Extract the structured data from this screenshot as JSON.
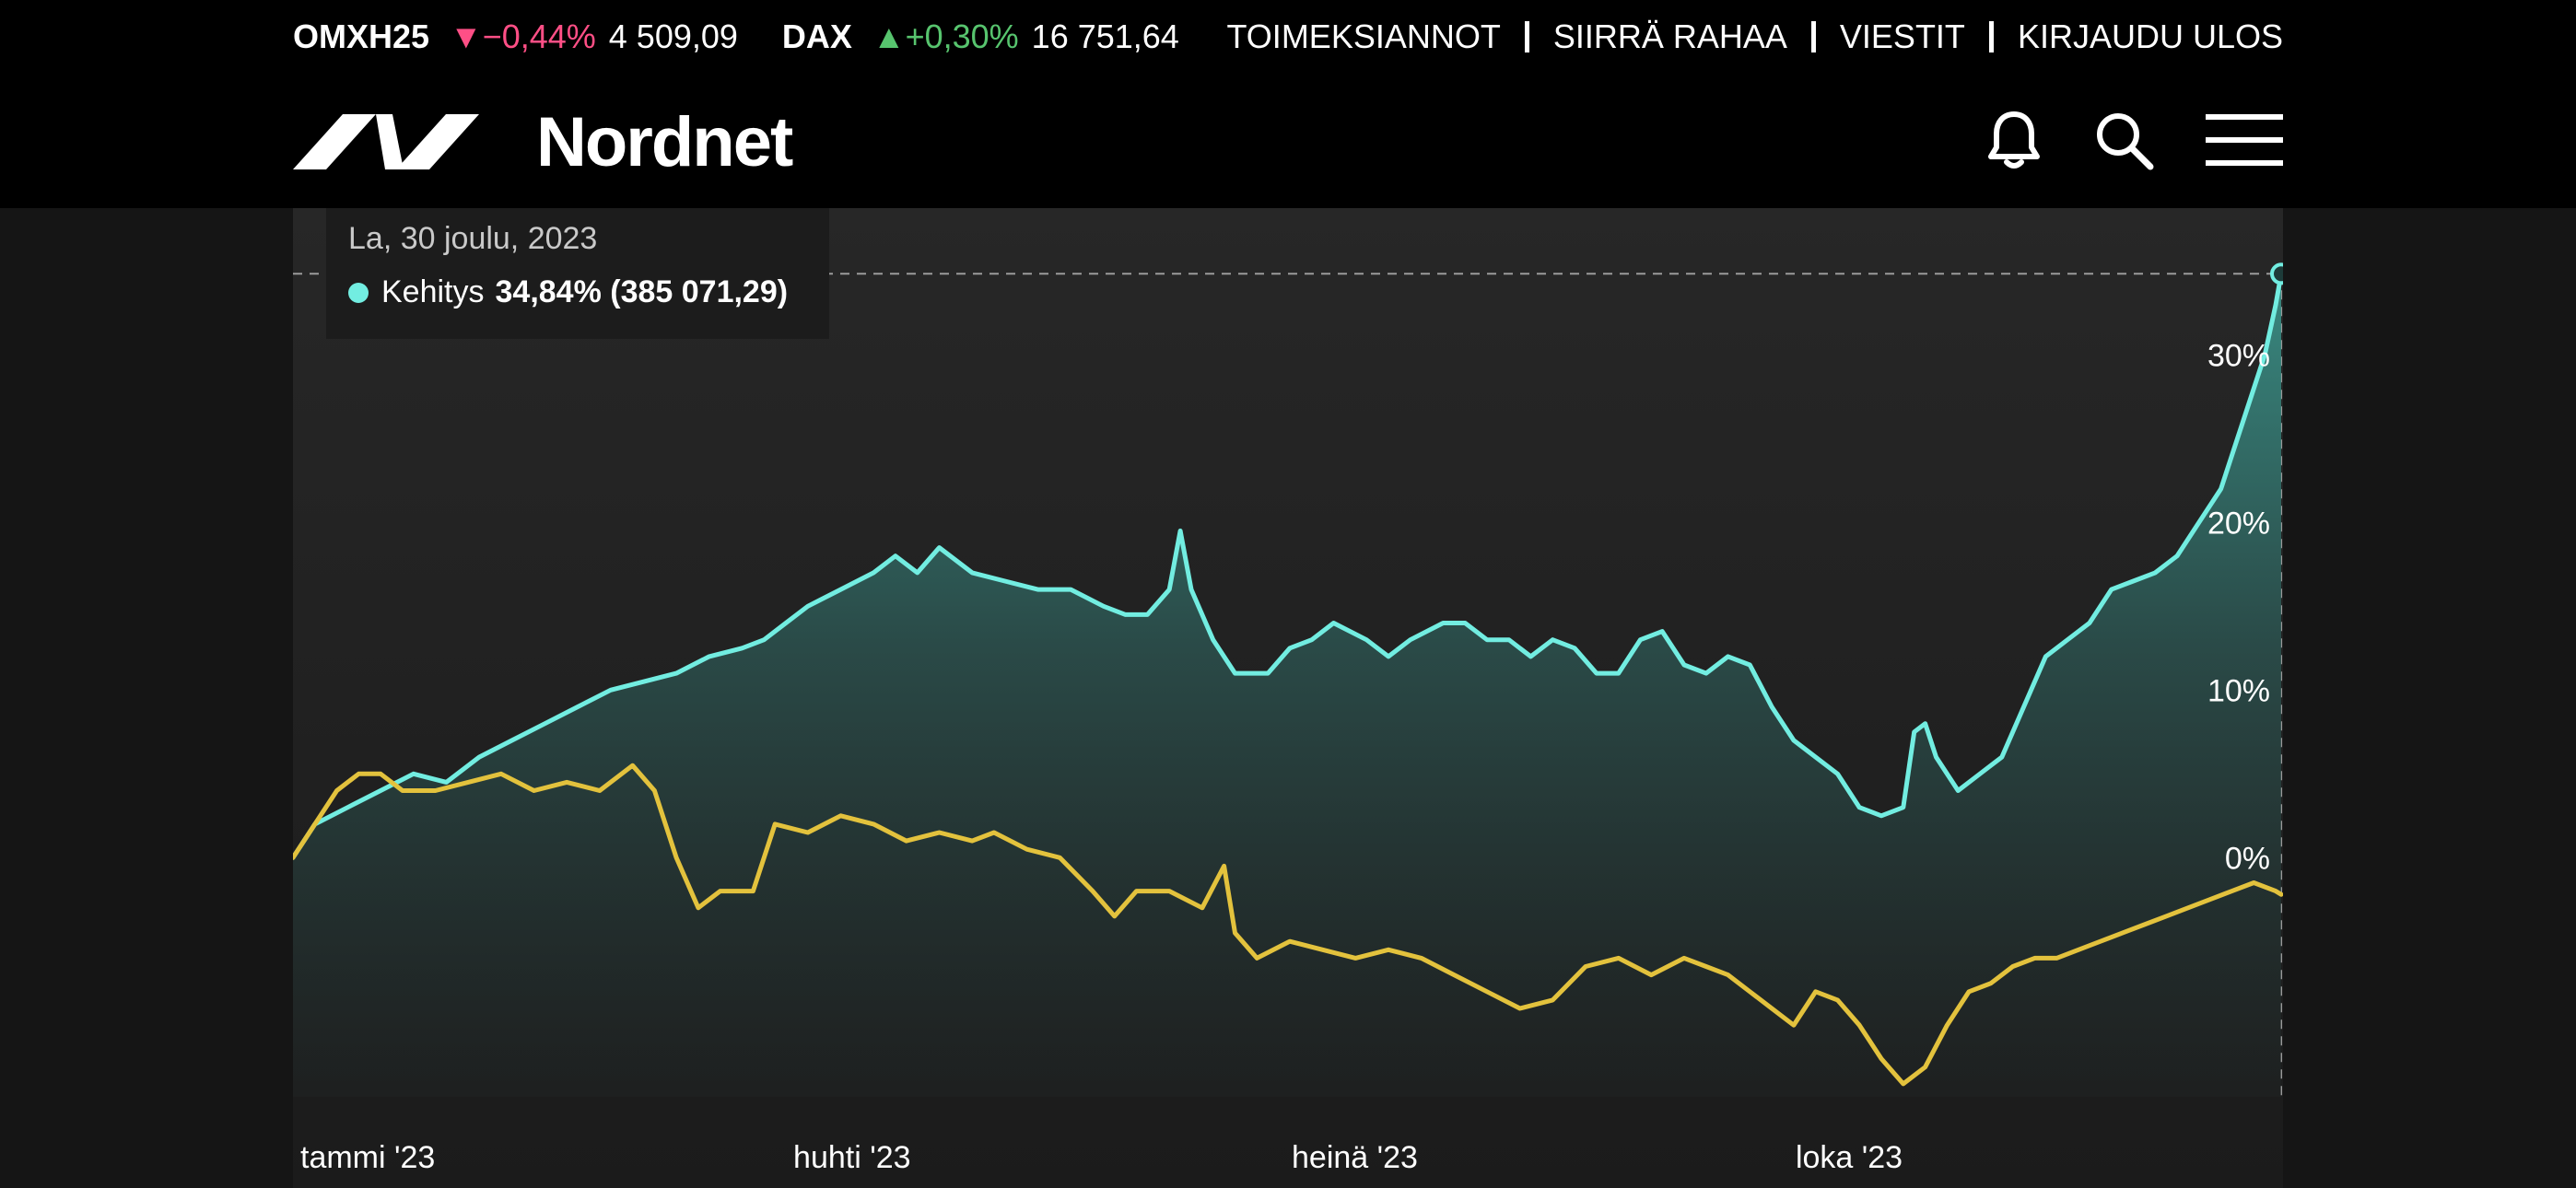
{
  "header": {
    "tickers": [
      {
        "name": "OMXH25",
        "change": "▼−0,44%",
        "direction": "down",
        "value": "4 509,09"
      },
      {
        "name": "DAX",
        "change": "▲+0,30%",
        "direction": "up",
        "value": "16 751,64"
      }
    ],
    "links": [
      "TOIMEKSIANNOT",
      "SIIRRÄ RAHAA",
      "VIESTIT",
      "KIRJAUDU ULOS"
    ],
    "logo_text": "Nordnet",
    "icons": [
      "bell-icon",
      "search-icon",
      "menu-icon"
    ]
  },
  "tooltip": {
    "date": "La, 30 joulu, 2023",
    "series_label": "Kehitys",
    "value": "34,84% (385 071,29)"
  },
  "colors": {
    "background": "#151515",
    "header": "#000000",
    "teal": "#72ede1",
    "yellow": "#e3c23d",
    "down": "#ff4f86",
    "up": "#57c46e"
  },
  "chart_data": {
    "type": "line",
    "x_tick_labels": [
      "tammi '23",
      "huhti '23",
      "heinä '23",
      "loka '23"
    ],
    "y_tick_labels": [
      "0%",
      "10%",
      "20%",
      "30%"
    ],
    "y_ticks": [
      0,
      10,
      20,
      30
    ],
    "ylim": [
      -14,
      37
    ],
    "xlim": [
      0,
      363
    ],
    "x_tick_days": [
      0,
      90,
      181,
      273
    ],
    "grid": false,
    "series": [
      {
        "name": "Kehitys",
        "color": "#72ede1",
        "area_fill": true,
        "points": [
          [
            0,
            0
          ],
          [
            4,
            2
          ],
          [
            10,
            3
          ],
          [
            16,
            4
          ],
          [
            22,
            5
          ],
          [
            28,
            4.5
          ],
          [
            34,
            6
          ],
          [
            40,
            7
          ],
          [
            46,
            8
          ],
          [
            52,
            9
          ],
          [
            58,
            10
          ],
          [
            64,
            10.5
          ],
          [
            70,
            11
          ],
          [
            76,
            12
          ],
          [
            82,
            12.5
          ],
          [
            86,
            13
          ],
          [
            90,
            14
          ],
          [
            94,
            15
          ],
          [
            100,
            16
          ],
          [
            106,
            17
          ],
          [
            110,
            18
          ],
          [
            114,
            17
          ],
          [
            118,
            18.5
          ],
          [
            124,
            17
          ],
          [
            130,
            16.5
          ],
          [
            136,
            16
          ],
          [
            142,
            16
          ],
          [
            148,
            15
          ],
          [
            152,
            14.5
          ],
          [
            156,
            14.5
          ],
          [
            160,
            16
          ],
          [
            162,
            19.5
          ],
          [
            164,
            16
          ],
          [
            168,
            13
          ],
          [
            172,
            11
          ],
          [
            178,
            11
          ],
          [
            182,
            12.5
          ],
          [
            186,
            13
          ],
          [
            190,
            14
          ],
          [
            196,
            13
          ],
          [
            200,
            12
          ],
          [
            204,
            13
          ],
          [
            210,
            14
          ],
          [
            214,
            14
          ],
          [
            218,
            13
          ],
          [
            222,
            13
          ],
          [
            226,
            12
          ],
          [
            230,
            13
          ],
          [
            234,
            12.5
          ],
          [
            238,
            11
          ],
          [
            242,
            11
          ],
          [
            246,
            13
          ],
          [
            250,
            13.5
          ],
          [
            254,
            11.5
          ],
          [
            258,
            11
          ],
          [
            262,
            12
          ],
          [
            266,
            11.5
          ],
          [
            270,
            9
          ],
          [
            274,
            7
          ],
          [
            278,
            6
          ],
          [
            282,
            5
          ],
          [
            286,
            3
          ],
          [
            290,
            2.5
          ],
          [
            294,
            3
          ],
          [
            296,
            7.5
          ],
          [
            298,
            8
          ],
          [
            300,
            6
          ],
          [
            304,
            4
          ],
          [
            308,
            5
          ],
          [
            312,
            6
          ],
          [
            316,
            9
          ],
          [
            320,
            12
          ],
          [
            324,
            13
          ],
          [
            328,
            14
          ],
          [
            332,
            16
          ],
          [
            336,
            16.5
          ],
          [
            340,
            17
          ],
          [
            344,
            18
          ],
          [
            348,
            20
          ],
          [
            352,
            22
          ],
          [
            354,
            24
          ],
          [
            356,
            26
          ],
          [
            358,
            28
          ],
          [
            360,
            30
          ],
          [
            362,
            33
          ],
          [
            363,
            34.84
          ]
        ]
      },
      {
        "name": "",
        "color": "#e3c23d",
        "area_fill": false,
        "points": [
          [
            0,
            0
          ],
          [
            4,
            2
          ],
          [
            8,
            4
          ],
          [
            12,
            5
          ],
          [
            16,
            5
          ],
          [
            20,
            4
          ],
          [
            26,
            4
          ],
          [
            32,
            4.5
          ],
          [
            38,
            5
          ],
          [
            44,
            4
          ],
          [
            50,
            4.5
          ],
          [
            56,
            4
          ],
          [
            62,
            5.5
          ],
          [
            66,
            4
          ],
          [
            70,
            0
          ],
          [
            74,
            -3
          ],
          [
            78,
            -2
          ],
          [
            84,
            -2
          ],
          [
            88,
            2
          ],
          [
            94,
            1.5
          ],
          [
            100,
            2.5
          ],
          [
            106,
            2
          ],
          [
            112,
            1
          ],
          [
            118,
            1.5
          ],
          [
            124,
            1
          ],
          [
            128,
            1.5
          ],
          [
            134,
            0.5
          ],
          [
            140,
            0
          ],
          [
            146,
            -2
          ],
          [
            150,
            -3.5
          ],
          [
            154,
            -2
          ],
          [
            160,
            -2
          ],
          [
            166,
            -3
          ],
          [
            170,
            -0.5
          ],
          [
            172,
            -4.5
          ],
          [
            176,
            -6
          ],
          [
            182,
            -5
          ],
          [
            188,
            -5.5
          ],
          [
            194,
            -6
          ],
          [
            200,
            -5.5
          ],
          [
            206,
            -6
          ],
          [
            212,
            -7
          ],
          [
            218,
            -8
          ],
          [
            224,
            -9
          ],
          [
            230,
            -8.5
          ],
          [
            236,
            -6.5
          ],
          [
            242,
            -6
          ],
          [
            248,
            -7
          ],
          [
            254,
            -6
          ],
          [
            258,
            -6.5
          ],
          [
            262,
            -7
          ],
          [
            266,
            -8
          ],
          [
            270,
            -9
          ],
          [
            274,
            -10
          ],
          [
            278,
            -8
          ],
          [
            282,
            -8.5
          ],
          [
            286,
            -10
          ],
          [
            290,
            -12
          ],
          [
            294,
            -13.5
          ],
          [
            298,
            -12.5
          ],
          [
            302,
            -10
          ],
          [
            306,
            -8
          ],
          [
            310,
            -7.5
          ],
          [
            314,
            -6.5
          ],
          [
            318,
            -6
          ],
          [
            322,
            -6
          ],
          [
            326,
            -5.5
          ],
          [
            330,
            -5
          ],
          [
            334,
            -4.5
          ],
          [
            338,
            -4
          ],
          [
            342,
            -3.5
          ],
          [
            346,
            -3
          ],
          [
            350,
            -2.5
          ],
          [
            354,
            -2
          ],
          [
            358,
            -1.5
          ],
          [
            362,
            -2
          ],
          [
            363,
            -2.2
          ]
        ]
      }
    ],
    "marker": {
      "x": 363,
      "y": 34.84,
      "color": "#72ede1"
    }
  }
}
